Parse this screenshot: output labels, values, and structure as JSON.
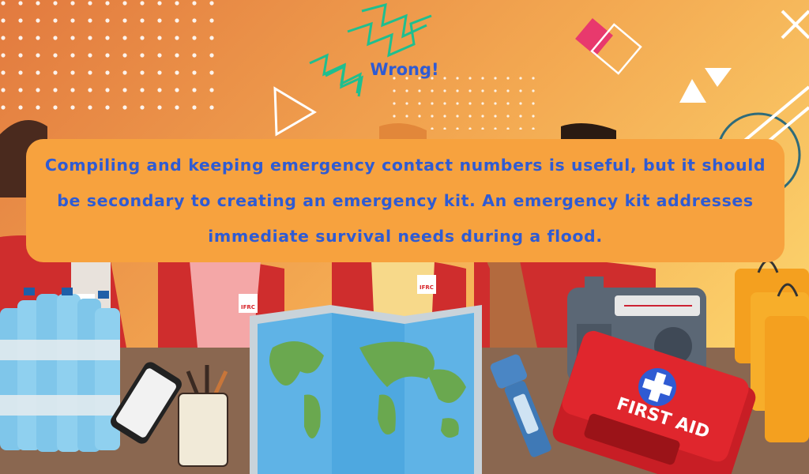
{
  "feedback": {
    "title": "Wrong!",
    "message": "Compiling and keeping emergency contact numbers is useful, but it should be secondary to creating an emergency kit. An emergency kit addresses immediate survival needs during a flood."
  },
  "labels": {
    "ifrc": "IFRC",
    "first_aid": "FIRST AID"
  },
  "colors": {
    "text_accent": "#2f5bd3",
    "box_fill": "#f7a23e",
    "background_top": "#e27a3f",
    "background_bottom": "#fbd06a",
    "table": "#8a6750",
    "kit_red": "#d8262c"
  },
  "icons": [
    "water-bottles",
    "smartphone",
    "pencil-cup",
    "world-map",
    "flashlight",
    "radio",
    "first-aid-kit",
    "shopping-bags"
  ]
}
